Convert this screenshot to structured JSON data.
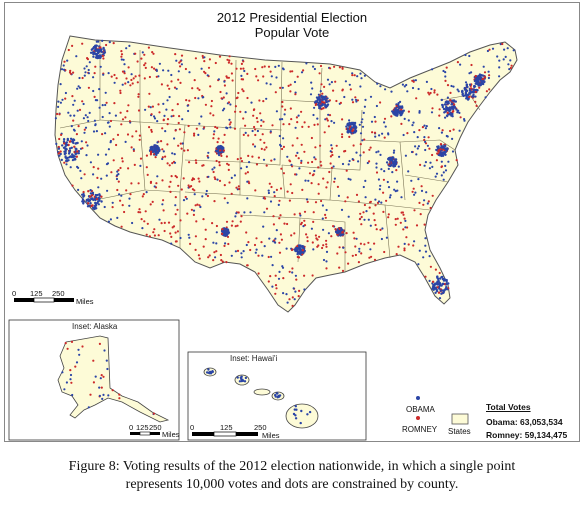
{
  "title": [
    "2012 Presidential Election",
    "Popular Vote"
  ],
  "insets": {
    "alaska_label": "Inset: Alaska",
    "hawaii_label": "Inset: Hawai'i"
  },
  "scale_bars": {
    "main": [
      "0",
      "125",
      "250",
      "Miles"
    ],
    "alaska": [
      "0",
      "125",
      "250",
      "Miles"
    ],
    "hawaii": [
      "0",
      "125",
      "250",
      "Miles"
    ]
  },
  "legend": {
    "obama_label": "OBAMA",
    "romney_label": "ROMNEY",
    "states_label": "States",
    "obama_color": "#2b45a6",
    "romney_color": "#cc2a2a",
    "land_color": "#fdfbd7"
  },
  "totals": {
    "heading": "Total Votes",
    "obama": "Obama: 63,053,534",
    "romney": "Romney: 59,134,475"
  },
  "caption": [
    "Figure 8: Voting results of the 2012 election nationwide, in which a single point",
    "represents 10,000 votes and dots are constrained by county."
  ]
}
